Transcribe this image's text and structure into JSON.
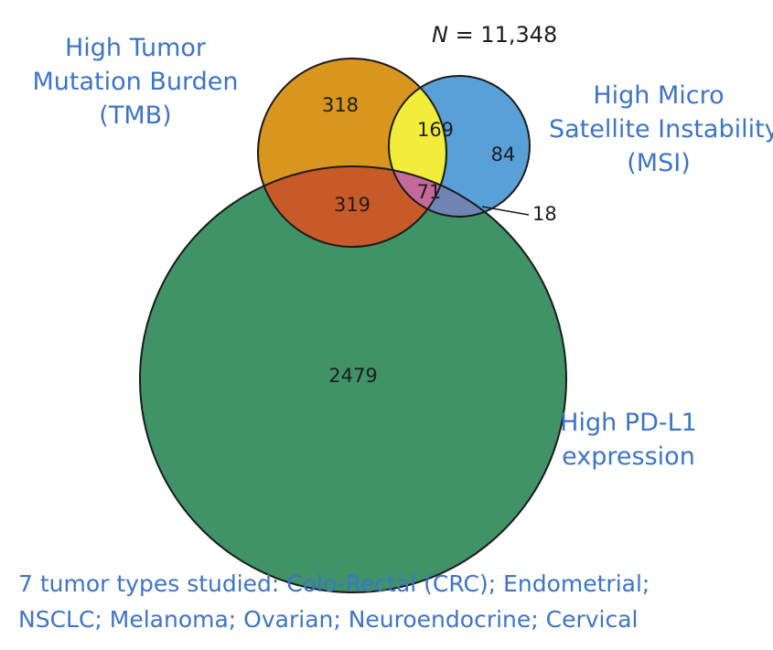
{
  "total": {
    "symbol": "N",
    "value": "= 11,348"
  },
  "sets": {
    "tmb": {
      "lines": [
        "High Tumor",
        "Mutation Burden",
        "(TMB)"
      ],
      "color": "#d8961e"
    },
    "msi": {
      "lines": [
        "High Micro",
        "Satellite Instability",
        "(MSI)"
      ],
      "color": "#5aa0d8"
    },
    "pdl1": {
      "lines": [
        "High PD-L1",
        "expression"
      ],
      "color": "#3f9366"
    }
  },
  "regions": {
    "tmb_only": "318",
    "tmb_msi": "169",
    "msi_only": "84",
    "tmb_pdl1": "319",
    "tmb_msi_pdl1": "71",
    "msi_pdl1": "18",
    "pdl1_only": "2479"
  },
  "region_colors": {
    "tmb_msi": "#f2ec3a",
    "tmb_pdl1": "#c85a2a",
    "tmb_msi_pdl1": "#c5699a",
    "msi_pdl1": "#6f86b4"
  },
  "caption": [
    "7 tumor types studied: Colo-Rectal (CRC); Endometrial;",
    "NSCLC; Melanoma; Ovarian; Neuroendocrine; Cervical"
  ]
}
